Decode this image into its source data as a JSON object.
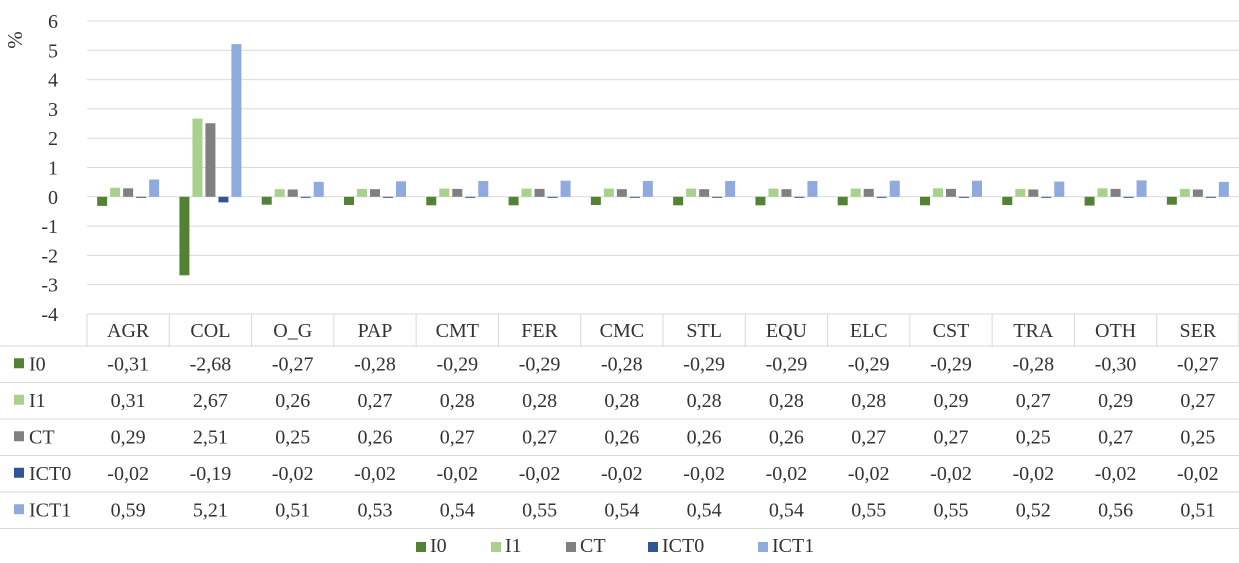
{
  "chart_data": {
    "type": "bar",
    "ylabel": "%",
    "ylim": [
      -4,
      6
    ],
    "yticks": [
      "-4",
      "-3",
      "-2",
      "-1",
      "0",
      "1",
      "2",
      "3",
      "4",
      "5",
      "6"
    ],
    "grid": true,
    "legend_position": "bottom",
    "categories": [
      "AGR",
      "COL",
      "O_G",
      "PAP",
      "CMT",
      "FER",
      "CMC",
      "STL",
      "EQU",
      "ELC",
      "CST",
      "TRA",
      "OTH",
      "SER"
    ],
    "series": [
      {
        "name": "I0",
        "color": "#548235",
        "values": [
          -0.31,
          -2.68,
          -0.27,
          -0.28,
          -0.29,
          -0.29,
          -0.28,
          -0.29,
          -0.29,
          -0.29,
          -0.29,
          -0.28,
          -0.3,
          -0.27
        ],
        "labels": [
          "-0,31",
          "-2,68",
          "-0,27",
          "-0,28",
          "-0,29",
          "-0,29",
          "-0,28",
          "-0,29",
          "-0,29",
          "-0,29",
          "-0,29",
          "-0,28",
          "-0,30",
          "-0,27"
        ]
      },
      {
        "name": "I1",
        "color": "#a9d18e",
        "values": [
          0.31,
          2.67,
          0.26,
          0.27,
          0.28,
          0.28,
          0.28,
          0.28,
          0.28,
          0.28,
          0.29,
          0.27,
          0.29,
          0.27
        ],
        "labels": [
          "0,31",
          "2,67",
          "0,26",
          "0,27",
          "0,28",
          "0,28",
          "0,28",
          "0,28",
          "0,28",
          "0,28",
          "0,29",
          "0,27",
          "0,29",
          "0,27"
        ]
      },
      {
        "name": "CT",
        "color": "#808080",
        "values": [
          0.29,
          2.51,
          0.25,
          0.26,
          0.27,
          0.27,
          0.26,
          0.26,
          0.26,
          0.27,
          0.27,
          0.25,
          0.27,
          0.25
        ],
        "labels": [
          "0,29",
          "2,51",
          "0,25",
          "0,26",
          "0,27",
          "0,27",
          "0,26",
          "0,26",
          "0,26",
          "0,27",
          "0,27",
          "0,25",
          "0,27",
          "0,25"
        ]
      },
      {
        "name": "ICT0",
        "color": "#2f5597",
        "values": [
          -0.02,
          -0.19,
          -0.02,
          -0.02,
          -0.02,
          -0.02,
          -0.02,
          -0.02,
          -0.02,
          -0.02,
          -0.02,
          -0.02,
          -0.02,
          -0.02
        ],
        "labels": [
          "-0,02",
          "-0,19",
          "-0,02",
          "-0,02",
          "-0,02",
          "-0,02",
          "-0,02",
          "-0,02",
          "-0,02",
          "-0,02",
          "-0,02",
          "-0,02",
          "-0,02",
          "-0,02"
        ]
      },
      {
        "name": "ICT1",
        "color": "#8faadc",
        "values": [
          0.59,
          5.21,
          0.51,
          0.53,
          0.54,
          0.55,
          0.54,
          0.54,
          0.54,
          0.55,
          0.55,
          0.52,
          0.56,
          0.51
        ],
        "labels": [
          "0,59",
          "5,21",
          "0,51",
          "0,53",
          "0,54",
          "0,55",
          "0,54",
          "0,54",
          "0,54",
          "0,55",
          "0,55",
          "0,52",
          "0,56",
          "0,51"
        ]
      }
    ]
  }
}
